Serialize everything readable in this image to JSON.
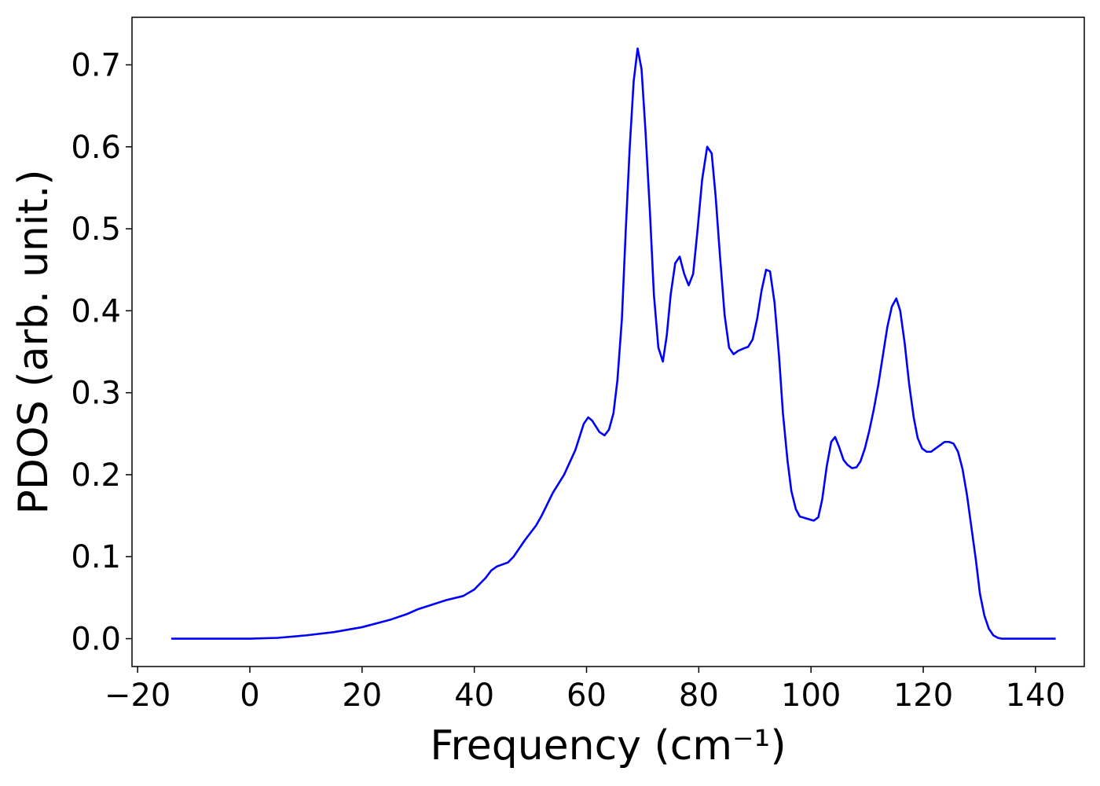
{
  "chart_data": {
    "type": "line",
    "xlabel": "Frequency (cm⁻¹)",
    "ylabel": "PDOS (arb. unit.)",
    "x": [
      -14,
      0,
      5,
      10,
      15,
      20,
      25,
      28,
      30,
      35,
      38,
      40,
      42,
      43,
      44,
      46,
      47,
      49,
      51,
      52,
      54,
      56,
      58,
      59.5,
      60.3,
      61,
      62.3,
      63.2,
      64,
      64.8,
      65.5,
      66.3,
      67,
      67.7,
      68.4,
      69.1,
      69.8,
      70.5,
      71.3,
      72,
      72.8,
      73.6,
      74.3,
      75,
      75.8,
      76.6,
      77.4,
      78.2,
      79,
      79.8,
      80.6,
      81.5,
      82.3,
      83,
      83.8,
      84.6,
      85.4,
      86.2,
      87,
      88,
      88.8,
      89.6,
      90.4,
      91.2,
      92,
      92.7,
      93.5,
      94.3,
      95,
      95.8,
      96.5,
      97.3,
      98,
      99,
      100,
      100.5,
      101.3,
      102,
      102.8,
      103.6,
      104.3,
      105,
      105.8,
      106.5,
      107.3,
      108.1,
      108.8,
      109.6,
      110.4,
      111.2,
      112,
      112.8,
      113.6,
      114.4,
      115.2,
      115.9,
      116.7,
      117.5,
      118.3,
      119,
      119.8,
      120.6,
      121.4,
      122.2,
      123,
      123.8,
      124.6,
      125.4,
      126.2,
      127,
      127.8,
      128.6,
      129.4,
      130.1,
      130.9,
      131.7,
      132.5,
      133.3,
      134,
      143.6
    ],
    "series": [
      {
        "color": "#0000ff",
        "values": [
          0,
          0,
          0.001,
          0.004,
          0.008,
          0.014,
          0.023,
          0.03,
          0.036,
          0.047,
          0.052,
          0.06,
          0.074,
          0.083,
          0.088,
          0.093,
          0.1,
          0.12,
          0.138,
          0.15,
          0.178,
          0.2,
          0.23,
          0.262,
          0.27,
          0.266,
          0.252,
          0.248,
          0.255,
          0.275,
          0.315,
          0.39,
          0.5,
          0.6,
          0.68,
          0.72,
          0.695,
          0.62,
          0.52,
          0.42,
          0.355,
          0.338,
          0.37,
          0.42,
          0.458,
          0.466,
          0.445,
          0.431,
          0.445,
          0.5,
          0.56,
          0.6,
          0.592,
          0.54,
          0.465,
          0.395,
          0.355,
          0.347,
          0.351,
          0.354,
          0.356,
          0.365,
          0.39,
          0.425,
          0.45,
          0.448,
          0.41,
          0.345,
          0.275,
          0.218,
          0.18,
          0.158,
          0.149,
          0.147,
          0.145,
          0.144,
          0.148,
          0.17,
          0.21,
          0.24,
          0.246,
          0.234,
          0.218,
          0.212,
          0.208,
          0.209,
          0.216,
          0.232,
          0.254,
          0.28,
          0.31,
          0.345,
          0.38,
          0.405,
          0.415,
          0.4,
          0.36,
          0.31,
          0.27,
          0.245,
          0.232,
          0.228,
          0.228,
          0.232,
          0.236,
          0.24,
          0.24,
          0.238,
          0.228,
          0.207,
          0.175,
          0.135,
          0.095,
          0.055,
          0.028,
          0.012,
          0.004,
          0.001,
          0,
          0
        ]
      }
    ],
    "xlim": [
      -21,
      148.7
    ],
    "ylim": [
      -0.034,
      0.758
    ],
    "xticks": [
      {
        "value": -20,
        "label": "−20"
      },
      0,
      20,
      40,
      60,
      80,
      100,
      120,
      140
    ],
    "yticks": [
      {
        "value": 0,
        "label": "0.0"
      },
      0.1,
      0.2,
      0.3,
      0.4,
      0.5,
      0.6,
      0.7
    ],
    "grid": false
  }
}
